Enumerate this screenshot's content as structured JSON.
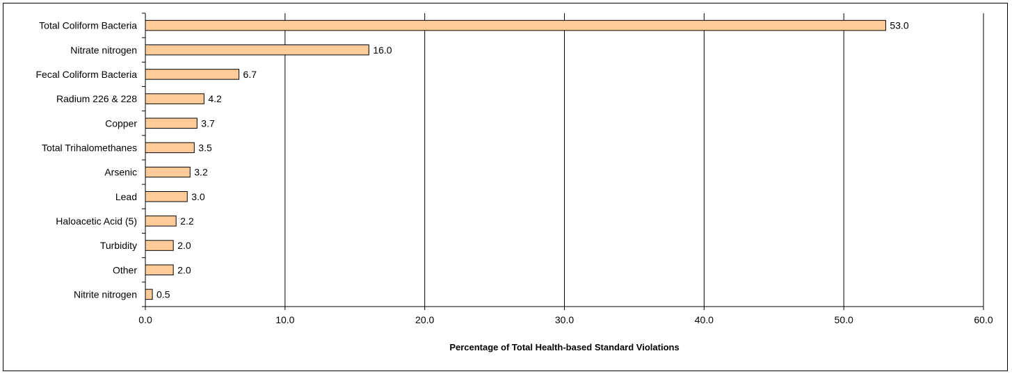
{
  "chart_data": {
    "type": "bar",
    "orientation": "horizontal",
    "categories": [
      "Total Coliform Bacteria",
      "Nitrate nitrogen",
      "Fecal Coliform Bacteria",
      "Radium 226 & 228",
      "Copper",
      "Total Trihalomethanes",
      "Arsenic",
      "Lead",
      "Haloacetic Acid (5)",
      "Turbidity",
      "Other",
      "Nitrite nitrogen"
    ],
    "values": [
      53.0,
      16.0,
      6.7,
      4.2,
      3.7,
      3.5,
      3.2,
      3.0,
      2.2,
      2.0,
      2.0,
      0.5
    ],
    "data_labels": [
      "53.0",
      "16.0",
      "6.7",
      "4.2",
      "3.7",
      "3.5",
      "3.2",
      "3.0",
      "2.2",
      "2.0",
      "2.0",
      "0.5"
    ],
    "xlabel": "Percentage of Total Health-based Standard Violations",
    "ylabel": "",
    "xlim": [
      0,
      60
    ],
    "x_ticks": [
      0,
      10,
      20,
      30,
      40,
      50,
      60
    ],
    "x_tick_labels": [
      "0.0",
      "10.0",
      "20.0",
      "30.0",
      "40.0",
      "50.0",
      "60.0"
    ],
    "grid": "vertical",
    "legend": "none",
    "colors": {
      "bar_fill": "#FFCC99",
      "bar_stroke": "#000000",
      "grid": "#000000"
    }
  }
}
